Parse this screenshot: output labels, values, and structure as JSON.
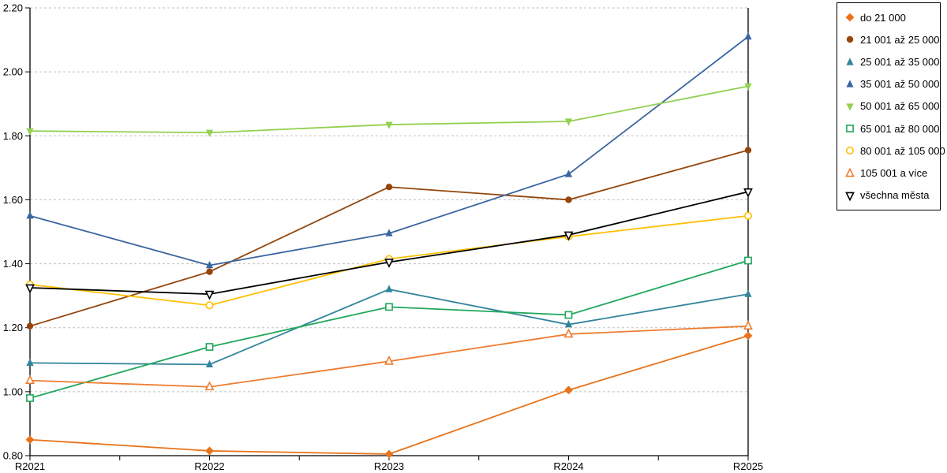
{
  "chart_data": {
    "type": "line",
    "title": "",
    "xlabel": "",
    "ylabel": "",
    "categories": [
      "R2021",
      "R2022",
      "R2023",
      "R2024",
      "R2025"
    ],
    "series": [
      {
        "name": "do 21 000",
        "color": "#E8731A",
        "marker": "diamond",
        "marker_style": "filled",
        "values": [
          0.85,
          0.815,
          0.805,
          1.005,
          1.175
        ]
      },
      {
        "name": "21 001 až 25 000",
        "color": "#94460D",
        "marker": "circle",
        "marker_style": "filled",
        "values": [
          1.205,
          1.375,
          1.64,
          1.6,
          1.755
        ]
      },
      {
        "name": "25 001 až 35 000",
        "color": "#31849B",
        "marker": "triangle-up",
        "marker_style": "filled",
        "values": [
          1.09,
          1.085,
          1.32,
          1.21,
          1.305
        ]
      },
      {
        "name": "35 001 až 50 000",
        "color": "#3A66A0",
        "marker": "triangle-up",
        "marker_style": "filled",
        "values": [
          1.55,
          1.395,
          1.495,
          1.68,
          2.11
        ]
      },
      {
        "name": "50 001 až 65 000",
        "color": "#92D050",
        "marker": "triangle-down",
        "marker_style": "filled",
        "values": [
          1.815,
          1.81,
          1.835,
          1.845,
          1.955
        ]
      },
      {
        "name": "65 001 až 80 000",
        "color": "#21A75C",
        "marker": "square",
        "marker_style": "open",
        "values": [
          0.98,
          1.14,
          1.265,
          1.24,
          1.41
        ]
      },
      {
        "name": "80 001 až 105 000",
        "color": "#FFC000",
        "marker": "circle",
        "marker_style": "open",
        "values": [
          1.335,
          1.27,
          1.415,
          1.485,
          1.55
        ]
      },
      {
        "name": "105 001 a více",
        "color": "#ED7D31",
        "marker": "triangle-up",
        "marker_style": "open",
        "values": [
          1.035,
          1.015,
          1.095,
          1.18,
          1.205
        ]
      },
      {
        "name": "všechna města",
        "color": "#000000",
        "marker": "triangle-down",
        "marker_style": "open",
        "values": [
          1.325,
          1.305,
          1.405,
          1.49,
          1.625
        ]
      }
    ],
    "ylim": [
      0.8,
      2.2
    ],
    "ytick_step": 0.2,
    "ytick_labels": [
      "0.80",
      "1.00",
      "1.20",
      "1.40",
      "1.60",
      "1.80",
      "2.00",
      "2.20"
    ],
    "grid": "horizontal-dashed",
    "gridline_color": "#BFBFBF",
    "axis_color": "#000000",
    "legend_position": "top-right-outside"
  }
}
